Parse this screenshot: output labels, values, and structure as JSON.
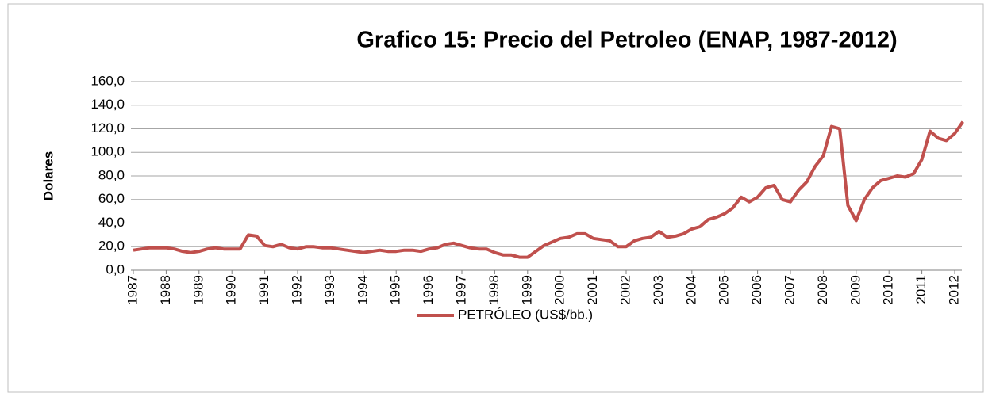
{
  "chart_data": {
    "type": "line",
    "title": "Grafico 15: Precio del Petroleo (ENAP, 1987-2012)",
    "y_label": "Dolares",
    "categories": [
      "1987",
      null,
      null,
      null,
      "1988",
      null,
      null,
      null,
      "1989",
      null,
      null,
      null,
      "1990",
      null,
      null,
      null,
      "1991",
      null,
      null,
      null,
      "1992",
      null,
      null,
      null,
      "1993",
      null,
      null,
      null,
      "1994",
      null,
      null,
      null,
      "1995",
      null,
      null,
      null,
      "1996",
      null,
      null,
      null,
      "1997",
      null,
      null,
      null,
      "1998",
      null,
      null,
      null,
      "1999",
      null,
      null,
      null,
      "2000",
      null,
      null,
      null,
      "2001",
      null,
      null,
      null,
      "2002",
      null,
      null,
      null,
      "2003",
      null,
      null,
      null,
      "2004",
      null,
      null,
      null,
      "2005",
      null,
      null,
      null,
      "2006",
      null,
      null,
      null,
      "2007",
      null,
      null,
      null,
      "2008",
      null,
      null,
      null,
      "2009",
      null,
      null,
      null,
      "2010",
      null,
      null,
      null,
      "2011",
      null,
      null,
      null,
      "2012",
      null
    ],
    "series": [
      {
        "name": "PETRÓLEO (US$/bb.)",
        "color": "#c0504d",
        "values": [
          17,
          18,
          19,
          19,
          19,
          18,
          16,
          15,
          16,
          18,
          19,
          18,
          18,
          18,
          30,
          29,
          21,
          20,
          22,
          19,
          18,
          20,
          20,
          19,
          19,
          18,
          17,
          16,
          15,
          16,
          17,
          16,
          16,
          17,
          17,
          16,
          18,
          19,
          22,
          23,
          21,
          19,
          18,
          18,
          15,
          13,
          13,
          11,
          11,
          16,
          21,
          24,
          27,
          28,
          31,
          31,
          27,
          26,
          25,
          20,
          20,
          25,
          27,
          28,
          33,
          28,
          29,
          31,
          35,
          37,
          43,
          45,
          48,
          53,
          62,
          58,
          62,
          70,
          72,
          60,
          58,
          68,
          75,
          88,
          97,
          122,
          120,
          55,
          42,
          60,
          70,
          76,
          78,
          80,
          79,
          82,
          94,
          118,
          112,
          110,
          116,
          126
        ]
      }
    ],
    "ylim": [
      0,
      160
    ],
    "yticks": [
      {
        "value": 0,
        "label": "0,0"
      },
      {
        "value": 20,
        "label": "20,0"
      },
      {
        "value": 40,
        "label": "40,0"
      },
      {
        "value": 60,
        "label": "60,0"
      },
      {
        "value": 80,
        "label": "80,0"
      },
      {
        "value": 100,
        "label": "100,0"
      },
      {
        "value": 120,
        "label": "120,0"
      },
      {
        "value": 140,
        "label": "140,0"
      },
      {
        "value": 160,
        "label": "160,0"
      }
    ],
    "grid": true,
    "legend": "bottom"
  }
}
